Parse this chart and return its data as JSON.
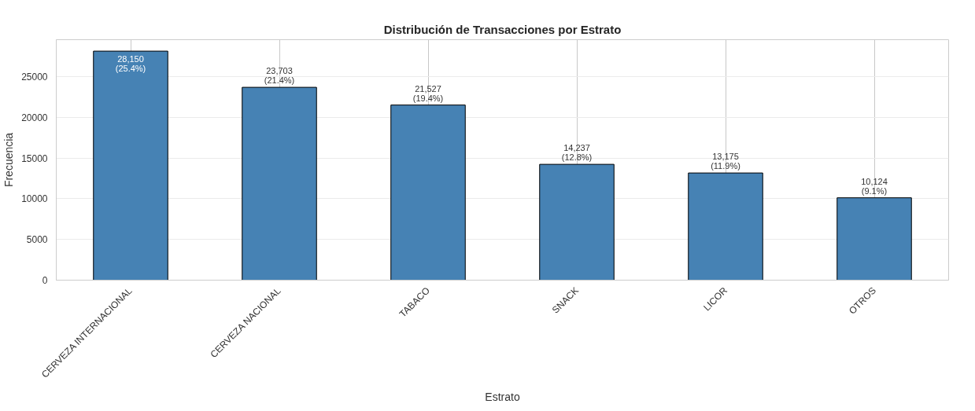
{
  "chart_data": {
    "type": "bar",
    "title": "Distribución de Transacciones por Estrato",
    "xlabel": "Estrato",
    "ylabel": "Frecuencia",
    "categories": [
      "CERVEZA INTERNACIONAL",
      "CERVEZA NACIONAL",
      "TABACO",
      "SNACK",
      "LICOR",
      "OTROS"
    ],
    "values": [
      28150,
      23703,
      21527,
      14237,
      13175,
      10124
    ],
    "value_labels": [
      "28,150\n(25.4%)",
      "23,703\n(21.4%)",
      "21,527\n(19.4%)",
      "14,237\n(12.8%)",
      "13,175\n(11.9%)",
      "10,124\n(9.1%)"
    ],
    "color": "#4682b4",
    "ylim": [
      0,
      29557
    ],
    "yticks": [
      0,
      5000,
      10000,
      15000,
      20000,
      25000
    ],
    "grid": true
  }
}
